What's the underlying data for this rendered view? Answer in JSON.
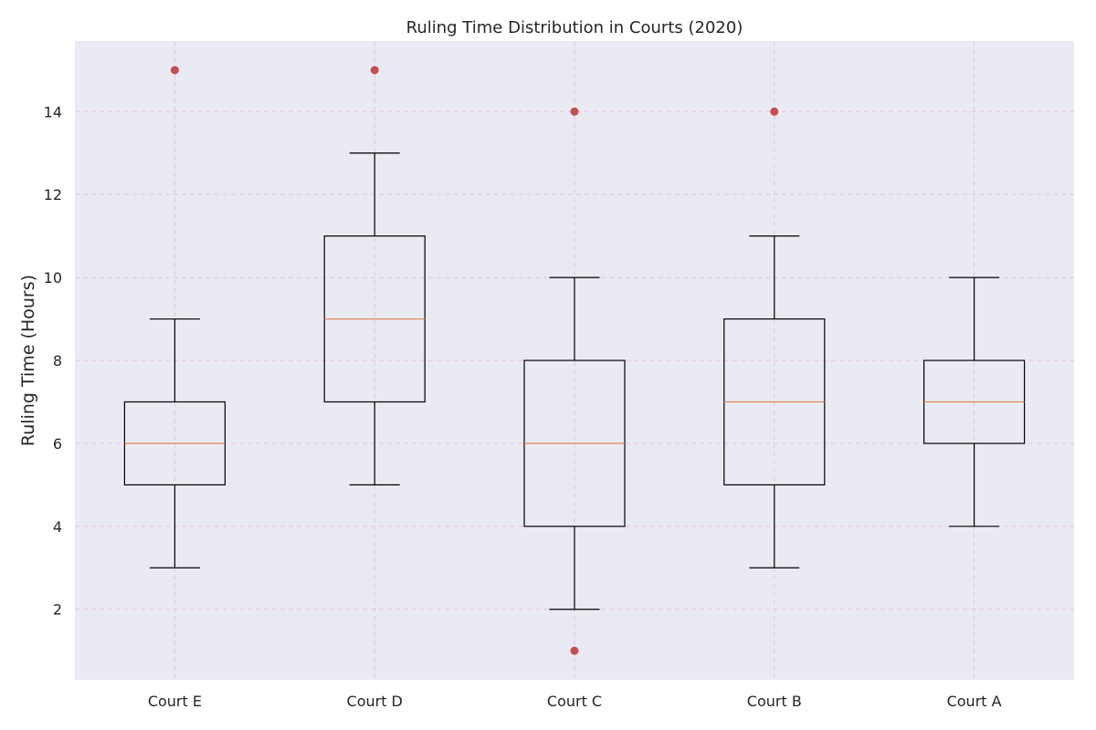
{
  "chart_data": {
    "type": "box",
    "title": "Ruling Time Distribution in Courts (2020)",
    "xlabel": "",
    "ylabel": "Ruling Time (Hours)",
    "ylim": [
      0.3,
      15.7
    ],
    "yticks": [
      2,
      4,
      6,
      8,
      10,
      12,
      14
    ],
    "categories": [
      "Court E",
      "Court D",
      "Court C",
      "Court B",
      "Court A"
    ],
    "boxes": [
      {
        "category": "Court E",
        "whisker_low": 3,
        "q1": 5,
        "median": 6,
        "q3": 7,
        "whisker_high": 9,
        "outliers": [
          15
        ]
      },
      {
        "category": "Court D",
        "whisker_low": 5,
        "q1": 7,
        "median": 9,
        "q3": 11,
        "whisker_high": 13,
        "outliers": [
          15
        ]
      },
      {
        "category": "Court C",
        "whisker_low": 2,
        "q1": 4,
        "median": 6,
        "q3": 8,
        "whisker_high": 10,
        "outliers": [
          14,
          1
        ]
      },
      {
        "category": "Court B",
        "whisker_low": 3,
        "q1": 5,
        "median": 7,
        "q3": 9,
        "whisker_high": 11,
        "outliers": [
          14
        ]
      },
      {
        "category": "Court A",
        "whisker_low": 4,
        "q1": 6,
        "median": 7,
        "q3": 8,
        "whisker_high": 10,
        "outliers": []
      }
    ],
    "grid": true,
    "colors": {
      "plot_background": "#eaeaf2",
      "grid": "#e8bfe0",
      "box_edge": "#000000",
      "median": "#dd8452",
      "outlier": "#c44e52"
    }
  }
}
